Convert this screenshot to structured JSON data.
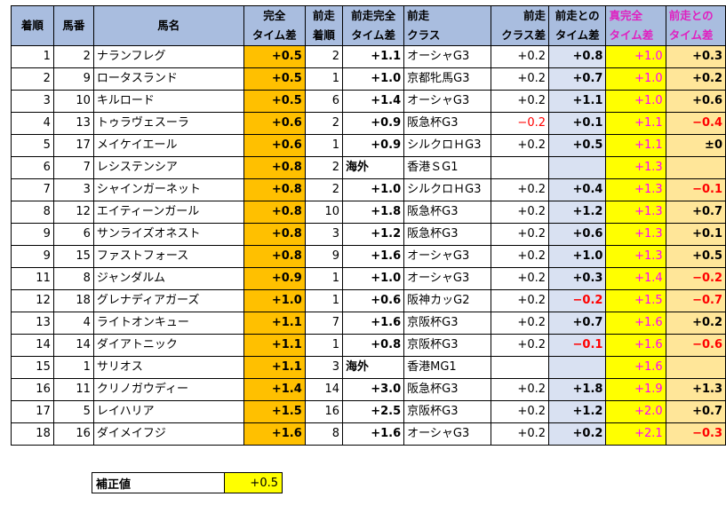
{
  "headers": {
    "place": "着順",
    "number": "馬番",
    "name": "馬名",
    "full_time_1": "完全",
    "full_time_2": "タイム差",
    "prev_place_1": "前走",
    "prev_place_2": "着順",
    "prev_full_1": "前走完全",
    "prev_full_2": "タイム差",
    "prev_class_1": "前走",
    "prev_class_2": "クラス",
    "class_diff_1": "前走",
    "class_diff_2": "クラス差",
    "prev_diff_1": "前走との",
    "prev_diff_2": "タイム差",
    "true_full_1": "真完全",
    "true_full_2": "タイム差",
    "prev_true_1": "前走との",
    "prev_true_2": "タイム差"
  },
  "rows": [
    {
      "place": "1",
      "num": "2",
      "name": "ナランフレグ",
      "full": "+0.5",
      "pplace": "2",
      "pfull": "+1.1",
      "pclass": "オーシャG3",
      "cdiff": "+0.2",
      "pdiff": "+0.8",
      "tfull": "+1.0",
      "ptdiff": "+0.3"
    },
    {
      "place": "2",
      "num": "9",
      "name": "ロータスランド",
      "full": "+0.5",
      "pplace": "1",
      "pfull": "+1.0",
      "pclass": "京都牝馬G3",
      "cdiff": "+0.2",
      "pdiff": "+0.7",
      "tfull": "+1.0",
      "ptdiff": "+0.2"
    },
    {
      "place": "3",
      "num": "10",
      "name": "キルロード",
      "full": "+0.5",
      "pplace": "6",
      "pfull": "+1.4",
      "pclass": "オーシャG3",
      "cdiff": "+0.2",
      "pdiff": "+1.1",
      "tfull": "+1.0",
      "ptdiff": "+0.6"
    },
    {
      "place": "4",
      "num": "13",
      "name": "トゥラヴェスーラ",
      "full": "+0.6",
      "pplace": "2",
      "pfull": "+0.9",
      "pclass": "阪急杯G3",
      "cdiff": "−0.2",
      "pdiff": "+0.1",
      "tfull": "+1.1",
      "ptdiff": "−0.4"
    },
    {
      "place": "5",
      "num": "17",
      "name": "メイケイエール",
      "full": "+0.6",
      "pplace": "1",
      "pfull": "+0.9",
      "pclass": "シルクロＨG3",
      "cdiff": "+0.2",
      "pdiff": "+0.5",
      "tfull": "+1.1",
      "ptdiff": "±0"
    },
    {
      "place": "6",
      "num": "7",
      "name": "レシステンシア",
      "full": "+0.8",
      "pplace": "2",
      "pfull": "海外",
      "pclass": "香港ＳG1",
      "cdiff": "",
      "pdiff": "",
      "tfull": "+1.3",
      "ptdiff": ""
    },
    {
      "place": "7",
      "num": "3",
      "name": "シャインガーネット",
      "full": "+0.8",
      "pplace": "2",
      "pfull": "+1.0",
      "pclass": "シルクロＨG3",
      "cdiff": "+0.2",
      "pdiff": "+0.4",
      "tfull": "+1.3",
      "ptdiff": "−0.1"
    },
    {
      "place": "8",
      "num": "12",
      "name": "エイティーンガール",
      "full": "+0.8",
      "pplace": "10",
      "pfull": "+1.8",
      "pclass": "阪急杯G3",
      "cdiff": "+0.2",
      "pdiff": "+1.2",
      "tfull": "+1.3",
      "ptdiff": "+0.7"
    },
    {
      "place": "9",
      "num": "6",
      "name": "サンライズオネスト",
      "full": "+0.8",
      "pplace": "3",
      "pfull": "+1.2",
      "pclass": "阪急杯G3",
      "cdiff": "+0.2",
      "pdiff": "+0.6",
      "tfull": "+1.3",
      "ptdiff": "+0.1"
    },
    {
      "place": "9",
      "num": "15",
      "name": "ファストフォース",
      "full": "+0.8",
      "pplace": "9",
      "pfull": "+1.6",
      "pclass": "オーシャG3",
      "cdiff": "+0.2",
      "pdiff": "+1.0",
      "tfull": "+1.3",
      "ptdiff": "+0.5"
    },
    {
      "place": "11",
      "num": "8",
      "name": "ジャンダルム",
      "full": "+0.9",
      "pplace": "1",
      "pfull": "+1.0",
      "pclass": "オーシャG3",
      "cdiff": "+0.2",
      "pdiff": "+0.3",
      "tfull": "+1.4",
      "ptdiff": "−0.2"
    },
    {
      "place": "12",
      "num": "18",
      "name": "グレナディアガーズ",
      "full": "+1.0",
      "pplace": "1",
      "pfull": "+0.6",
      "pclass": "阪神カッG2",
      "cdiff": "+0.2",
      "pdiff": "−0.2",
      "tfull": "+1.5",
      "ptdiff": "−0.7"
    },
    {
      "place": "13",
      "num": "4",
      "name": "ライトオンキュー",
      "full": "+1.1",
      "pplace": "7",
      "pfull": "+1.6",
      "pclass": "京阪杯G3",
      "cdiff": "+0.2",
      "pdiff": "+0.7",
      "tfull": "+1.6",
      "ptdiff": "+0.2"
    },
    {
      "place": "14",
      "num": "14",
      "name": "ダイアトニック",
      "full": "+1.1",
      "pplace": "1",
      "pfull": "+0.8",
      "pclass": "京阪杯G3",
      "cdiff": "+0.2",
      "pdiff": "−0.1",
      "tfull": "+1.6",
      "ptdiff": "−0.6"
    },
    {
      "place": "15",
      "num": "1",
      "name": "サリオス",
      "full": "+1.1",
      "pplace": "3",
      "pfull": "海外",
      "pclass": "香港MG1",
      "cdiff": "",
      "pdiff": "",
      "tfull": "+1.6",
      "ptdiff": ""
    },
    {
      "place": "16",
      "num": "11",
      "name": "クリノガウディー",
      "full": "+1.4",
      "pplace": "14",
      "pfull": "+3.0",
      "pclass": "阪急杯G3",
      "cdiff": "+0.2",
      "pdiff": "+1.8",
      "tfull": "+1.9",
      "ptdiff": "+1.3"
    },
    {
      "place": "17",
      "num": "5",
      "name": "レイハリア",
      "full": "+1.5",
      "pplace": "16",
      "pfull": "+2.5",
      "pclass": "京阪杯G3",
      "cdiff": "+0.2",
      "pdiff": "+1.2",
      "tfull": "+2.0",
      "ptdiff": "+0.7"
    },
    {
      "place": "18",
      "num": "16",
      "name": "ダイメイフジ",
      "full": "+1.6",
      "pplace": "8",
      "pfull": "+1.6",
      "pclass": "オーシャG3",
      "cdiff": "+0.2",
      "pdiff": "+0.2",
      "tfull": "+2.1",
      "ptdiff": "−0.3"
    }
  ],
  "correction": {
    "label": "補正値",
    "value": "+0.5"
  }
}
